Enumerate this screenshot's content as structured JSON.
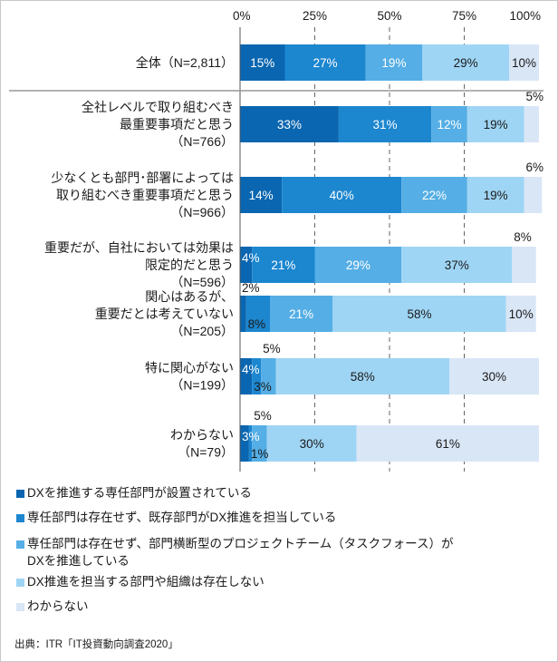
{
  "chart_data": {
    "type": "bar",
    "orientation": "horizontal",
    "stacked": true,
    "xlim": [
      0,
      100
    ],
    "x_tick_labels": [
      "0%",
      "25%",
      "50%",
      "75%",
      "100%"
    ],
    "rows": [
      {
        "label": "全体（N=2,811）",
        "values": [
          15,
          27,
          19,
          29,
          10
        ]
      },
      {
        "label": "全社レベルで取り組むべき\n最重要事項だと思う\n（N=766）",
        "values": [
          33,
          31,
          12,
          19,
          5
        ]
      },
      {
        "label": "少なくとも部門･部署によっては\n取り組むべき重要事項だと思う\n（N=966）",
        "values": [
          14,
          40,
          22,
          19,
          6
        ]
      },
      {
        "label": "重要だが、自社においては効果は\n限定的だと思う\n（N=596）",
        "values": [
          4,
          21,
          29,
          37,
          8
        ]
      },
      {
        "label": "関心はあるが、\n重要だとは考えていない\n（N=205）",
        "values": [
          2,
          8,
          21,
          58,
          10
        ]
      },
      {
        "label": "特に関心がない\n（N=199）",
        "values": [
          4,
          3,
          5,
          58,
          30
        ]
      },
      {
        "label": "わからない\n（N=79）",
        "values": [
          3,
          1,
          5,
          30,
          61
        ]
      }
    ],
    "series": [
      {
        "name": "DXを推進する専任部門が設置されている",
        "color": "#0a66b0"
      },
      {
        "name": "専任部門は存在せず、既存部門がDX推進を担当している",
        "color": "#1c86cf"
      },
      {
        "name": "専任部門は存在せず、部門横断型のプロジェクトチーム（タスクフォース）が\nDXを推進している",
        "color": "#55aee5"
      },
      {
        "name": "DX推進を担当する部門や組織は存在しない",
        "color": "#9fd5f4"
      },
      {
        "name": "わからない",
        "color": "#d9e6f6"
      }
    ],
    "source": "出典：ITR「IT投資動向調査2020」"
  }
}
